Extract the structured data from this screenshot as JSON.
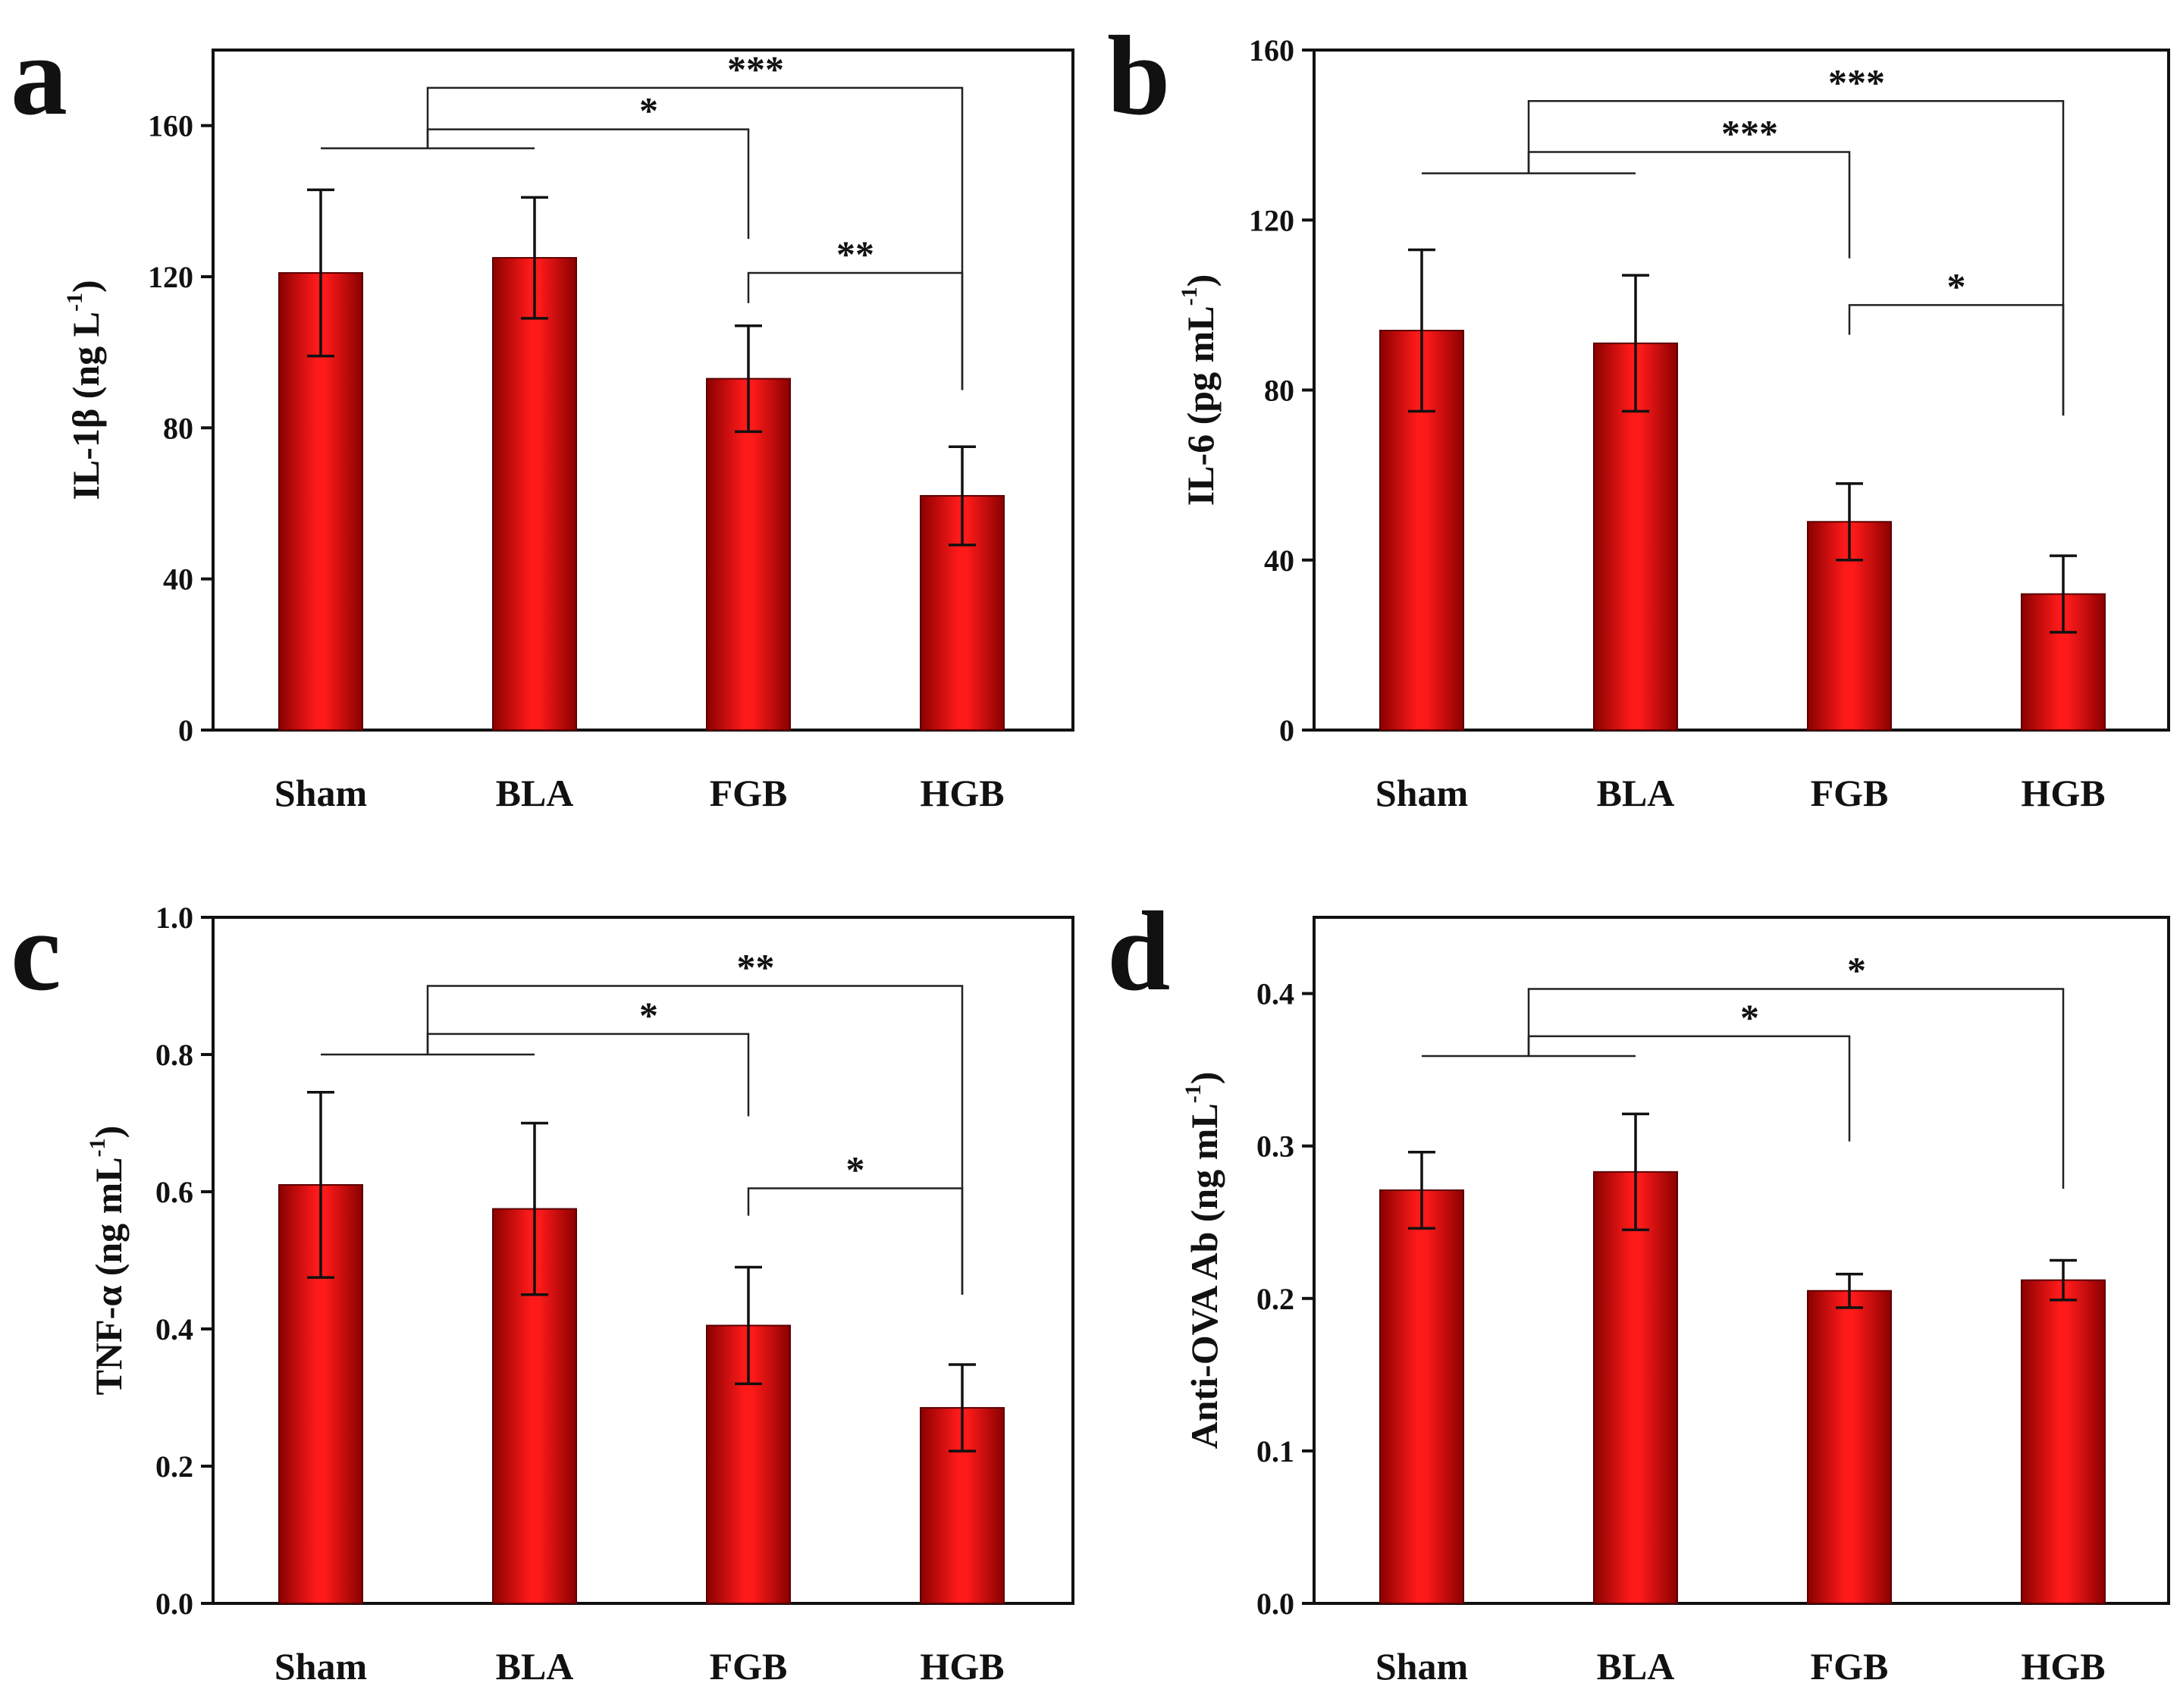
{
  "colors": {
    "bar_center": "#ff1a1a",
    "bar_edge": "#8b0000",
    "ink": "#111111"
  },
  "chart_data": [
    {
      "type": "bar",
      "panel": "a",
      "categories": [
        "Sham",
        "BLA",
        "FGB",
        "HGB"
      ],
      "values": [
        121,
        125,
        93,
        62
      ],
      "errors": [
        22,
        16,
        14,
        13
      ],
      "ylabel": "IL-1β (ng L",
      "ylabel_sup": "-1",
      "ylabel_close": ")",
      "ylim": [
        0,
        180
      ],
      "yticks": [
        0,
        40,
        80,
        120,
        160
      ],
      "tick_decimals": 0,
      "group_line": {
        "from": 0,
        "to": 1,
        "y": 154
      },
      "brackets": [
        {
          "from": "group",
          "to": 2,
          "y": 159,
          "end_y": 130,
          "label": "*"
        },
        {
          "from": "group",
          "to": 3,
          "y": 170,
          "end_y": 90,
          "label": "***"
        },
        {
          "from": 2,
          "to": 3,
          "y": 121,
          "start_y": 113,
          "end_y": 90,
          "label": "**"
        }
      ]
    },
    {
      "type": "bar",
      "panel": "b",
      "categories": [
        "Sham",
        "BLA",
        "FGB",
        "HGB"
      ],
      "values": [
        94,
        91,
        49,
        32
      ],
      "errors": [
        19,
        16,
        9,
        9
      ],
      "ylabel": "IL-6 (pg mL",
      "ylabel_sup": "-1",
      "ylabel_close": ")",
      "ylim": [
        0,
        160
      ],
      "yticks": [
        0,
        40,
        80,
        120,
        160
      ],
      "tick_decimals": 0,
      "group_line": {
        "from": 0,
        "to": 1,
        "y": 131
      },
      "brackets": [
        {
          "from": "group",
          "to": 2,
          "y": 136,
          "end_y": 111,
          "label": "***"
        },
        {
          "from": "group",
          "to": 3,
          "y": 148,
          "end_y": 74,
          "label": "***"
        },
        {
          "from": 2,
          "to": 3,
          "y": 100,
          "start_y": 93,
          "end_y": 74,
          "label": "*"
        }
      ]
    },
    {
      "type": "bar",
      "panel": "c",
      "categories": [
        "Sham",
        "BLA",
        "FGB",
        "HGB"
      ],
      "values": [
        0.61,
        0.575,
        0.405,
        0.285
      ],
      "errors": [
        0.135,
        0.125,
        0.085,
        0.063
      ],
      "ylabel": "TNF-α (ng mL",
      "ylabel_sup": "-1",
      "ylabel_close": ")",
      "ylim": [
        0,
        1.0
      ],
      "yticks": [
        0.0,
        0.2,
        0.4,
        0.6,
        0.8,
        1.0
      ],
      "tick_decimals": 1,
      "group_line": {
        "from": 0,
        "to": 1,
        "y": 0.8
      },
      "brackets": [
        {
          "from": "group",
          "to": 2,
          "y": 0.83,
          "end_y": 0.71,
          "label": "*"
        },
        {
          "from": "group",
          "to": 3,
          "y": 0.9,
          "end_y": 0.45,
          "label": "**"
        },
        {
          "from": 2,
          "to": 3,
          "y": 0.605,
          "start_y": 0.565,
          "end_y": 0.45,
          "label": "*"
        }
      ]
    },
    {
      "type": "bar",
      "panel": "d",
      "categories": [
        "Sham",
        "BLA",
        "FGB",
        "HGB"
      ],
      "values": [
        0.271,
        0.283,
        0.205,
        0.212
      ],
      "errors": [
        0.025,
        0.038,
        0.011,
        0.013
      ],
      "ylabel": "Anti-OVA Ab (ng mL",
      "ylabel_sup": "-1",
      "ylabel_close": ")",
      "ylim": [
        0,
        0.45
      ],
      "yticks": [
        0.0,
        0.1,
        0.2,
        0.3,
        0.4
      ],
      "tick_decimals": 1,
      "group_line": {
        "from": 0,
        "to": 1,
        "y": 0.359
      },
      "brackets": [
        {
          "from": "group",
          "to": 2,
          "y": 0.372,
          "end_y": 0.303,
          "label": "*"
        },
        {
          "from": "group",
          "to": 3,
          "y": 0.403,
          "end_y": 0.272,
          "label": "*"
        }
      ]
    }
  ]
}
